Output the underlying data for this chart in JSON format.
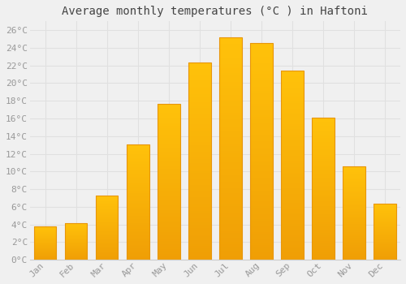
{
  "title": "Average monthly temperatures (°C ) in Haftoni",
  "months": [
    "Jan",
    "Feb",
    "Mar",
    "Apr",
    "May",
    "Jun",
    "Jul",
    "Aug",
    "Sep",
    "Oct",
    "Nov",
    "Dec"
  ],
  "values": [
    3.8,
    4.2,
    7.3,
    13.1,
    17.7,
    22.3,
    25.2,
    24.5,
    21.4,
    16.1,
    10.6,
    6.4
  ],
  "bar_color": "#FFBE00",
  "bar_edge_color": "#E8960A",
  "ylim": [
    0,
    27
  ],
  "yticks": [
    0,
    2,
    4,
    6,
    8,
    10,
    12,
    14,
    16,
    18,
    20,
    22,
    24,
    26
  ],
  "background_color": "#f0f0f0",
  "grid_color": "#e0e0e0",
  "title_fontsize": 10,
  "tick_fontsize": 8,
  "tick_color": "#999999",
  "font_family": "monospace"
}
